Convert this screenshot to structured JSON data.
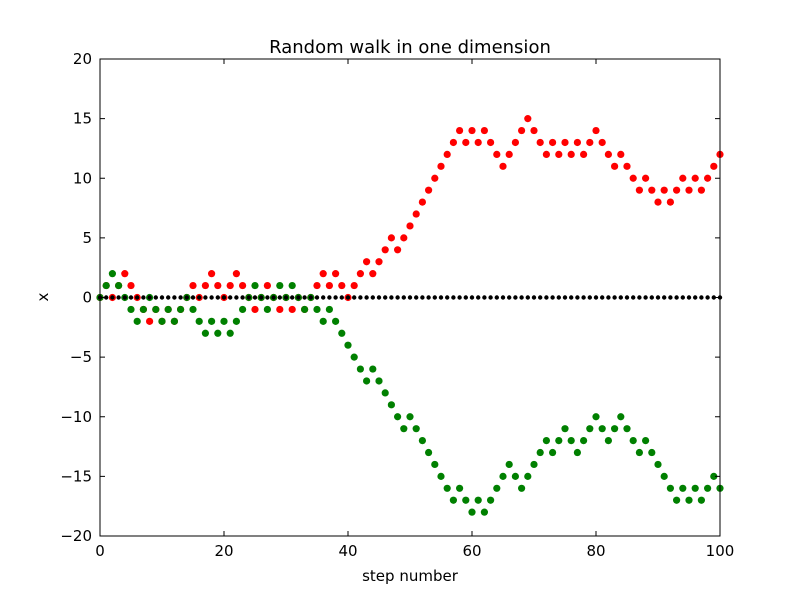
{
  "chart_data": {
    "type": "scatter",
    "title": "Random walk in one dimension",
    "xlabel": "step number",
    "ylabel": "x",
    "xlim": [
      0,
      100
    ],
    "ylim": [
      -20,
      20
    ],
    "xticks": [
      0,
      20,
      40,
      60,
      80,
      100
    ],
    "yticks": [
      -20,
      -15,
      -10,
      -5,
      0,
      5,
      10,
      15,
      20
    ],
    "ytick_labels": [
      "−20",
      "−15",
      "−10",
      "−5",
      "0",
      "5",
      "10",
      "15",
      "20"
    ],
    "grid": false,
    "legend": "none",
    "x": [
      0,
      1,
      2,
      3,
      4,
      5,
      6,
      7,
      8,
      9,
      10,
      11,
      12,
      13,
      14,
      15,
      16,
      17,
      18,
      19,
      20,
      21,
      22,
      23,
      24,
      25,
      26,
      27,
      28,
      29,
      30,
      31,
      32,
      33,
      34,
      35,
      36,
      37,
      38,
      39,
      40,
      41,
      42,
      43,
      44,
      45,
      46,
      47,
      48,
      49,
      50,
      51,
      52,
      53,
      54,
      55,
      56,
      57,
      58,
      59,
      60,
      61,
      62,
      63,
      64,
      65,
      66,
      67,
      68,
      69,
      70,
      71,
      72,
      73,
      74,
      75,
      76,
      77,
      78,
      79,
      80,
      81,
      82,
      83,
      84,
      85,
      86,
      87,
      88,
      89,
      90,
      91,
      92,
      93,
      94,
      95,
      96,
      97,
      98,
      99,
      100
    ],
    "series": [
      {
        "color": "#ff0000",
        "values": [
          0,
          1,
          0,
          1,
          2,
          1,
          0,
          -1,
          -2,
          -1,
          -2,
          -1,
          -2,
          -1,
          0,
          1,
          0,
          1,
          2,
          1,
          0,
          1,
          2,
          1,
          0,
          -1,
          0,
          1,
          0,
          -1,
          0,
          -1,
          0,
          -1,
          0,
          1,
          2,
          1,
          2,
          1,
          0,
          1,
          2,
          3,
          2,
          3,
          4,
          5,
          4,
          5,
          6,
          7,
          8,
          9,
          10,
          11,
          12,
          13,
          14,
          13,
          14,
          13,
          14,
          13,
          12,
          11,
          12,
          13,
          14,
          15,
          14,
          13,
          12,
          13,
          12,
          13,
          12,
          13,
          12,
          13,
          14,
          13,
          12,
          11,
          12,
          11,
          10,
          9,
          10,
          9,
          8,
          9,
          8,
          9,
          10,
          9,
          10,
          9,
          10,
          11,
          12
        ]
      },
      {
        "color": "#008000",
        "values": [
          0,
          1,
          2,
          1,
          0,
          -1,
          -2,
          -1,
          0,
          -1,
          -2,
          -1,
          -2,
          -1,
          0,
          -1,
          -2,
          -3,
          -2,
          -3,
          -2,
          -3,
          -2,
          -1,
          0,
          1,
          0,
          -1,
          0,
          1,
          0,
          1,
          0,
          -1,
          0,
          -1,
          -2,
          -1,
          -2,
          -3,
          -4,
          -5,
          -6,
          -7,
          -6,
          -7,
          -8,
          -9,
          -10,
          -11,
          -10,
          -11,
          -12,
          -13,
          -14,
          -15,
          -16,
          -17,
          -16,
          -17,
          -18,
          -17,
          -18,
          -17,
          -16,
          -15,
          -14,
          -15,
          -16,
          -15,
          -14,
          -13,
          -12,
          -13,
          -12,
          -11,
          -12,
          -13,
          -12,
          -11,
          -10,
          -11,
          -12,
          -11,
          -10,
          -11,
          -12,
          -13,
          -12,
          -13,
          -14,
          -15,
          -16,
          -17,
          -16,
          -17,
          -16,
          -17,
          -16,
          -15,
          -16
        ]
      },
      {
        "color": "#000000",
        "values": [
          0,
          0,
          0,
          0,
          0,
          0,
          0,
          0,
          0,
          0,
          0,
          0,
          0,
          0,
          0,
          0,
          0,
          0,
          0,
          0,
          0,
          0,
          0,
          0,
          0,
          0,
          0,
          0,
          0,
          0,
          0,
          0,
          0,
          0,
          0,
          0,
          0,
          0,
          0,
          0,
          0,
          0,
          0,
          0,
          0,
          0,
          0,
          0,
          0,
          0,
          0,
          0,
          0,
          0,
          0,
          0,
          0,
          0,
          0,
          0,
          0,
          0,
          0,
          0,
          0,
          0,
          0,
          0,
          0,
          0,
          0,
          0,
          0,
          0,
          0,
          0,
          0,
          0,
          0,
          0,
          0,
          0,
          0,
          0,
          0,
          0,
          0,
          0,
          0,
          0,
          0,
          0,
          0,
          0,
          0,
          0,
          0,
          0,
          0,
          0,
          0
        ]
      }
    ]
  }
}
